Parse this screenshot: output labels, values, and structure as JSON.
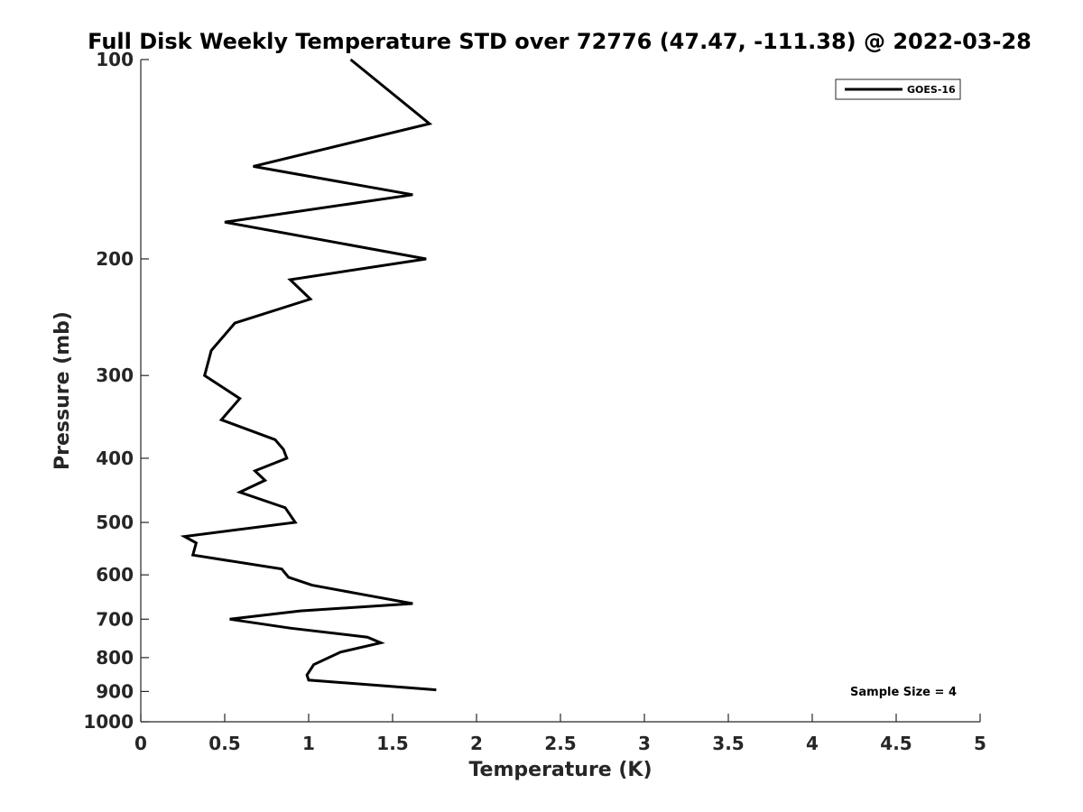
{
  "chart_data": {
    "type": "line",
    "title": "Full Disk Weekly Temperature STD over 72776 (47.47, -111.38) @ 2022-03-28",
    "xlabel": "Temperature (K)",
    "ylabel": "Pressure (mb)",
    "xlim": [
      0,
      5
    ],
    "ylim": [
      1000,
      100
    ],
    "yscale": "log",
    "y_reversed": true,
    "xticks": [
      0,
      0.5,
      1,
      1.5,
      2,
      2.5,
      3,
      3.5,
      4,
      4.5,
      5
    ],
    "xtick_labels": [
      "0",
      "0.5",
      "1",
      "1.5",
      "2",
      "2.5",
      "3",
      "3.5",
      "4",
      "4.5",
      "5"
    ],
    "yticks": [
      100,
      200,
      300,
      400,
      500,
      600,
      700,
      800,
      900,
      1000
    ],
    "ytick_labels": [
      "100",
      "200",
      "300",
      "400",
      "500",
      "600",
      "700",
      "800",
      "900",
      "1000"
    ],
    "grid": false,
    "legend_position": "top-right",
    "annotation": "Sample Size = 4",
    "series": [
      {
        "name": "GOES-16",
        "color": "#000000",
        "points": [
          [
            1.25,
            100
          ],
          [
            1.72,
            125
          ],
          [
            0.67,
            145
          ],
          [
            1.62,
            160
          ],
          [
            0.5,
            176
          ],
          [
            1.7,
            200
          ],
          [
            0.89,
            215
          ],
          [
            1.01,
            230
          ],
          [
            0.56,
            250
          ],
          [
            0.42,
            275
          ],
          [
            0.38,
            300
          ],
          [
            0.59,
            325
          ],
          [
            0.48,
            350
          ],
          [
            0.8,
            375
          ],
          [
            0.85,
            388
          ],
          [
            0.87,
            400
          ],
          [
            0.68,
            418
          ],
          [
            0.74,
            432
          ],
          [
            0.59,
            450
          ],
          [
            0.86,
            475
          ],
          [
            0.92,
            500
          ],
          [
            0.26,
            525
          ],
          [
            0.33,
            537
          ],
          [
            0.31,
            560
          ],
          [
            0.84,
            588
          ],
          [
            0.88,
            605
          ],
          [
            1.02,
            622
          ],
          [
            1.33,
            643
          ],
          [
            1.62,
            663
          ],
          [
            0.95,
            680
          ],
          [
            0.53,
            700
          ],
          [
            0.89,
            722
          ],
          [
            1.35,
            745
          ],
          [
            1.43,
            760
          ],
          [
            1.19,
            785
          ],
          [
            1.03,
            820
          ],
          [
            0.99,
            850
          ],
          [
            1.0,
            865
          ],
          [
            1.76,
            895
          ]
        ]
      }
    ]
  }
}
